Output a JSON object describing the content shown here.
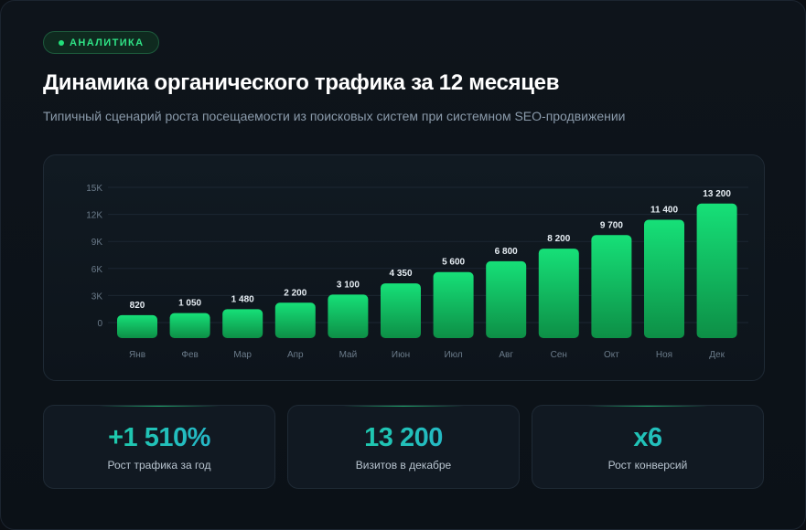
{
  "badge": {
    "label": "АНАЛИТИКА"
  },
  "title": "Динамика органического трафика за 12 месяцев",
  "subtitle": "Типичный сценарий роста посещаемости из поисковых систем при системном SEO-продвижении",
  "colors": {
    "accent": "#22e07a",
    "bar_top": "#16e078",
    "bar_bottom": "#0d8f46",
    "background": "#0b0f14"
  },
  "chart_data": {
    "type": "bar",
    "title": "",
    "xlabel": "",
    "ylabel": "",
    "categories": [
      "Янв",
      "Фев",
      "Мар",
      "Апр",
      "Май",
      "Июн",
      "Июл",
      "Авг",
      "Сен",
      "Окт",
      "Ноя",
      "Дек"
    ],
    "values": [
      820,
      1050,
      1480,
      2200,
      3100,
      4350,
      5600,
      6800,
      8200,
      9700,
      11400,
      13200
    ],
    "value_labels": [
      "820",
      "1 050",
      "1 480",
      "2 200",
      "3 100",
      "4 350",
      "5 600",
      "6 800",
      "8 200",
      "9 700",
      "11 400",
      "13 200"
    ],
    "y_ticks": [
      0,
      3000,
      6000,
      9000,
      12000,
      15000
    ],
    "y_tick_labels": [
      "0",
      "3K",
      "6K",
      "9K",
      "12K",
      "15K"
    ],
    "ylim": [
      0,
      15000
    ],
    "grid": true,
    "legend": "none"
  },
  "stats": [
    {
      "value": "+1 510%",
      "label": "Рост трафика за год"
    },
    {
      "value": "13 200",
      "label": "Визитов в декабре"
    },
    {
      "value": "x6",
      "label": "Рост конверсий"
    }
  ]
}
